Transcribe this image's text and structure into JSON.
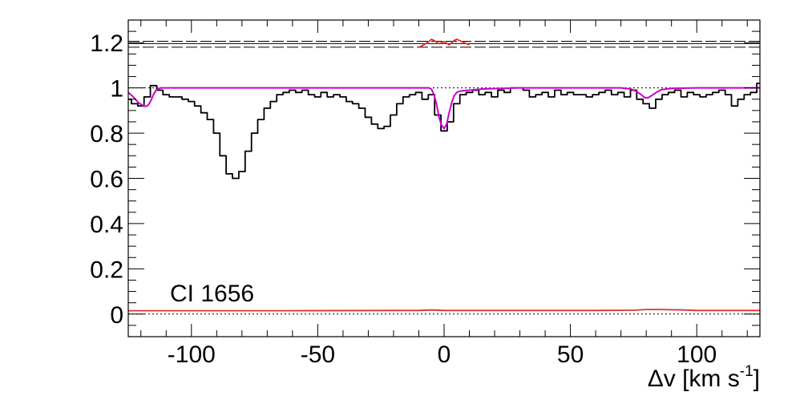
{
  "chart_data": {
    "type": "line",
    "title": "",
    "xlabel": "Δv [km s",
    "xlabel_sup": "-1",
    "xlabel_close": "]",
    "ylabel": "",
    "xlim": [
      -125,
      125
    ],
    "ylim": [
      -0.1,
      1.3
    ],
    "x_ticks": [
      -100,
      -50,
      0,
      50,
      100
    ],
    "x_tick_labels": [
      "-100",
      "-50",
      "0",
      "50",
      "100"
    ],
    "y_ticks": [
      0,
      0.2,
      0.4,
      0.6,
      0.8,
      1,
      1.2
    ],
    "y_tick_labels": [
      "0",
      "0.2",
      "0.4",
      "0.6",
      "0.8",
      "1",
      "1.2"
    ],
    "annotation": "CI 1656",
    "grid": false,
    "legend": "none",
    "colors": {
      "spectrum": "#000000",
      "model": "#cc00cc",
      "error": "#e03030",
      "reference": "#000000"
    },
    "series": [
      {
        "style": "step",
        "color": "#000000",
        "x": [
          -125,
          -122.5,
          -120,
          -117.5,
          -115,
          -112.5,
          -110,
          -107.5,
          -105,
          -102.5,
          -100,
          -97.5,
          -95,
          -92.5,
          -90,
          -87.5,
          -85,
          -82.5,
          -80,
          -77.5,
          -75,
          -72.5,
          -70,
          -67.5,
          -65,
          -62.5,
          -60,
          -57.5,
          -55,
          -52.5,
          -50,
          -47.5,
          -45,
          -42.5,
          -40,
          -37.5,
          -35,
          -32.5,
          -30,
          -27.5,
          -25,
          -22.5,
          -20,
          -17.5,
          -15,
          -12.5,
          -10,
          -7.5,
          -5,
          -2.5,
          0,
          2.5,
          5,
          7.5,
          10,
          12.5,
          15,
          17.5,
          20,
          22.5,
          25,
          27.5,
          30,
          32.5,
          35,
          37.5,
          40,
          42.5,
          45,
          47.5,
          50,
          52.5,
          55,
          57.5,
          60,
          62.5,
          65,
          67.5,
          70,
          72.5,
          75,
          77.5,
          80,
          82.5,
          85,
          87.5,
          90,
          92.5,
          95,
          97.5,
          100,
          102.5,
          105,
          107.5,
          110,
          112.5,
          115,
          117.5,
          120,
          122.5,
          125
        ],
        "y": [
          0.95,
          0.93,
          0.92,
          0.96,
          1.01,
          0.99,
          0.97,
          0.96,
          0.96,
          0.95,
          0.94,
          0.92,
          0.89,
          0.86,
          0.8,
          0.7,
          0.62,
          0.6,
          0.63,
          0.72,
          0.8,
          0.86,
          0.91,
          0.94,
          0.97,
          0.98,
          0.99,
          0.98,
          0.99,
          0.97,
          0.96,
          0.98,
          0.96,
          0.97,
          0.96,
          0.94,
          0.93,
          0.91,
          0.87,
          0.84,
          0.82,
          0.83,
          0.88,
          0.93,
          0.96,
          0.97,
          0.98,
          0.95,
          0.97,
          0.88,
          0.81,
          0.85,
          0.93,
          0.97,
          0.98,
          0.99,
          0.97,
          0.98,
          0.96,
          0.99,
          0.98,
          1.0,
          1.0,
          0.99,
          0.96,
          0.97,
          0.98,
          0.96,
          0.99,
          0.97,
          0.98,
          0.97,
          0.97,
          0.96,
          0.97,
          0.98,
          0.99,
          0.97,
          0.98,
          0.96,
          0.99,
          0.95,
          0.93,
          0.91,
          0.95,
          0.97,
          0.98,
          0.99,
          0.96,
          0.98,
          0.97,
          0.96,
          0.97,
          0.98,
          0.99,
          0.97,
          0.92,
          0.95,
          0.97,
          0.98,
          1.02
        ]
      },
      {
        "style": "smooth",
        "color": "#cc00cc",
        "x": [
          -125,
          -123,
          -121,
          -119,
          -118,
          -117,
          -116,
          -115,
          -114,
          -113,
          -112,
          -110,
          -100,
          -80,
          -60,
          -40,
          -20,
          -10,
          -6,
          -5,
          -4,
          -3,
          -2,
          -1,
          0,
          1,
          2,
          3,
          4,
          5,
          6,
          8,
          10,
          12,
          15,
          20,
          30,
          40,
          60,
          70,
          74,
          76,
          78,
          79,
          80,
          81,
          82,
          84,
          86,
          90,
          100,
          125
        ],
        "y": [
          0.98,
          0.96,
          0.935,
          0.92,
          0.918,
          0.925,
          0.945,
          0.97,
          0.99,
          0.997,
          1.0,
          1.0,
          1.0,
          1.0,
          1.0,
          1.0,
          1.0,
          1.0,
          1.0,
          0.995,
          0.97,
          0.93,
          0.87,
          0.835,
          0.82,
          0.84,
          0.89,
          0.935,
          0.965,
          0.98,
          0.985,
          0.988,
          0.99,
          0.992,
          0.995,
          0.997,
          1.0,
          1.0,
          1.0,
          1.0,
          0.995,
          0.985,
          0.97,
          0.96,
          0.955,
          0.958,
          0.965,
          0.98,
          0.992,
          0.998,
          1.0,
          1.0
        ]
      },
      {
        "style": "line",
        "color": "#e03030",
        "x": [
          -10,
          -8,
          -6,
          -5,
          -4,
          -2,
          0,
          2,
          4,
          5,
          6,
          8,
          10
        ],
        "y": [
          1.18,
          1.19,
          1.205,
          1.215,
          1.21,
          1.195,
          1.205,
          1.19,
          1.21,
          1.215,
          1.21,
          1.2,
          1.19
        ]
      },
      {
        "style": "line",
        "color": "#e03030",
        "x": [
          -125,
          -60,
          -20,
          -10,
          -5,
          0,
          20,
          60,
          75,
          80,
          85,
          95,
          100,
          125
        ],
        "y": [
          0.015,
          0.015,
          0.016,
          0.016,
          0.018,
          0.016,
          0.016,
          0.016,
          0.017,
          0.02,
          0.02,
          0.018,
          0.016,
          0.016
        ]
      }
    ],
    "reference_lines": [
      {
        "y": 1.18,
        "style": "dashed"
      },
      {
        "y": 1.196,
        "style": "solid"
      },
      {
        "y": 1.206,
        "style": "dashed"
      },
      {
        "y": 1.0,
        "style": "dotted"
      },
      {
        "y": 0.0,
        "style": "dotted"
      }
    ]
  }
}
